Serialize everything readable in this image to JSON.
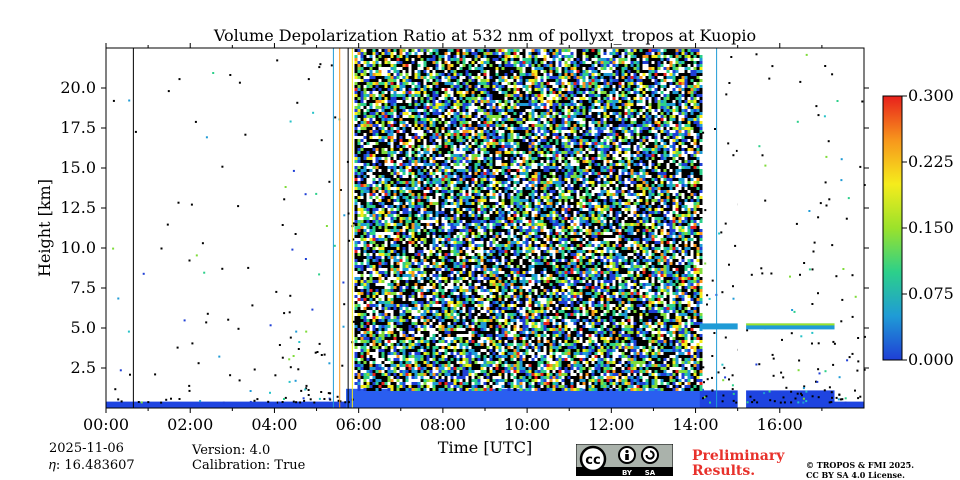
{
  "chart_data": {
    "type": "heatmap",
    "title": "Volume Depolarization Ratio at 532 nm of pollyxt_tropos at Kuopio",
    "xlabel": "Time [UTC]",
    "ylabel": "Height [km]",
    "xlim": [
      0,
      18
    ],
    "ylim": [
      0,
      22.5
    ],
    "xticks": [
      0,
      2,
      4,
      6,
      8,
      10,
      12,
      14,
      16
    ],
    "xtick_labels": [
      "00:00",
      "02:00",
      "04:00",
      "06:00",
      "08:00",
      "10:00",
      "12:00",
      "14:00",
      "16:00"
    ],
    "yticks": [
      2.5,
      5.0,
      7.5,
      10.0,
      12.5,
      15.0,
      17.5,
      20.0
    ],
    "ytick_labels": [
      "2.5",
      "5.0",
      "7.5",
      "10.0",
      "12.5",
      "15.0",
      "17.5",
      "20.0"
    ],
    "colorbar": {
      "range": [
        0.0,
        0.3
      ],
      "ticks": [
        0.0,
        0.075,
        0.15,
        0.225,
        0.3
      ],
      "tick_labels": [
        "0.000",
        "0.075",
        "0.150",
        "0.225",
        "0.300"
      ],
      "colors": [
        "#1f3fd6",
        "#1f9bd6",
        "#2cd08a",
        "#9be22b",
        "#f5ec1c",
        "#f7961c",
        "#e8201c"
      ]
    },
    "features": {
      "boundary_layer_top_km": 0.4,
      "noise_start_h": 5.9,
      "noise_end_h": 14.1,
      "cloud_layer_height_km": 5.1,
      "cloud_layer_start_h": 14.1,
      "cloud_layer_end_h": 17.3,
      "data_gap_start_h": 15.0,
      "data_gap_end_h": 15.2
    }
  },
  "footer": {
    "date": "2025-11-06",
    "eta": "𝜂: 16.483607",
    "version": "Version: 4.0",
    "calibration": "Calibration: True",
    "license_badge": {
      "cc": "cc",
      "by": "BY",
      "sa": "SA"
    },
    "preliminary_line1": "Preliminary",
    "preliminary_line2": "Results.",
    "copyright_line1": "© TROPOS & FMI 2025.",
    "copyright_line2": "CC BY SA 4.0 License."
  }
}
